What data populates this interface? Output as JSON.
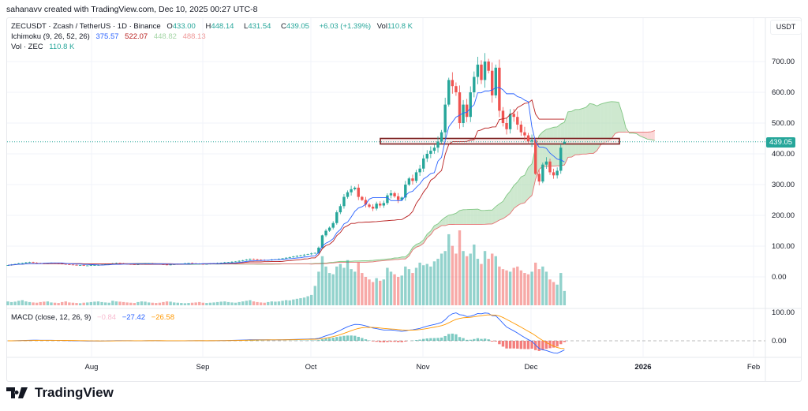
{
  "credit": "sahanavv created with TradingView.com, Dec 10, 2025 00:27 UTC-8",
  "symbol": {
    "title": "ZECUSDT · Zcash / TetherUS · 1D · Binance",
    "o_label": "O",
    "o": "433.00",
    "h_label": "H",
    "h": "448.14",
    "l_label": "L",
    "l": "431.54",
    "c_label": "C",
    "c": "439.05",
    "change": "+6.03 (+1.39%)",
    "vol_label": "Vol",
    "vol": "110.8 K"
  },
  "ichimoku": {
    "label": "Ichimoku (9, 26, 52, 26)",
    "conversion": "375.57",
    "base": "522.07",
    "span_a": "448.82",
    "span_b": "488.13"
  },
  "volume": {
    "label": "Vol · ZEC",
    "value": "110.8 K"
  },
  "macd": {
    "label": "MACD (close, 12, 26, 9)",
    "hist": "−0.84",
    "macd": "−27.42",
    "signal": "−26.58"
  },
  "axis": {
    "currency": "USDT",
    "price_ticks": [
      "700.00",
      "600.00",
      "500.00",
      "400.00",
      "300.00",
      "200.00",
      "100.00",
      "0.00"
    ],
    "macd_ticks": [
      "100.00",
      "0.00"
    ],
    "last_price": "439.05",
    "time_ticks": [
      "Aug",
      "Sep",
      "Oct",
      "Nov",
      "Dec",
      "2026",
      "Feb"
    ]
  },
  "logo": "TradingView",
  "colors": {
    "up": "#26a69a",
    "down": "#ef5350",
    "tenkan": "#2962ff",
    "kijun": "#b71c1c",
    "cloud_up": "#a5d6a7",
    "cloud_down": "#f7b7b7",
    "macd": "#2962ff",
    "signal": "#ff9800",
    "highlight_box": "#7b1f1f"
  },
  "chart_data": {
    "type": "candlestick",
    "start_date": "2025-07-08",
    "interval": "1D",
    "ylim": [
      0,
      760
    ],
    "highlight_zone": [
      432,
      450
    ],
    "last_bar": {
      "open": 433.0,
      "high": 448.14,
      "low": 431.54,
      "close": 439.05
    },
    "close": [
      38,
      40,
      42,
      44,
      45,
      47,
      48,
      46,
      45,
      44,
      43,
      44,
      45,
      44,
      43,
      42,
      41,
      40,
      39,
      38,
      38,
      37,
      37,
      38,
      38,
      39,
      40,
      41,
      42,
      44,
      45,
      44,
      43,
      42,
      41,
      40,
      41,
      42,
      43,
      44,
      43,
      42,
      41,
      40,
      39,
      40,
      41,
      42,
      43,
      44,
      45,
      44,
      43,
      42,
      41,
      42,
      43,
      44,
      45,
      46,
      47,
      48,
      49,
      50,
      52,
      54,
      56,
      58,
      57,
      56,
      55,
      54,
      55,
      56,
      57,
      58,
      60,
      62,
      64,
      66,
      68,
      70,
      72,
      74,
      76,
      78,
      95,
      135,
      150,
      160,
      175,
      210,
      230,
      260,
      275,
      285,
      290,
      260,
      250,
      235,
      228,
      222,
      238,
      232,
      240,
      265,
      272,
      262,
      250,
      258,
      300,
      320,
      312,
      340,
      352,
      385,
      400,
      410,
      420,
      440,
      470,
      560,
      640,
      620,
      600,
      500,
      560,
      520,
      600,
      650,
      690,
      640,
      700,
      670,
      590,
      680,
      540,
      500,
      480,
      530,
      520,
      495,
      470,
      460,
      440,
      445,
      335,
      310,
      365,
      375,
      340,
      330,
      345,
      420,
      439.05
    ],
    "volume_k": [
      30,
      25,
      28,
      35,
      40,
      30,
      25,
      22,
      20,
      25,
      28,
      30,
      22,
      20,
      18,
      25,
      30,
      22,
      20,
      18,
      16,
      20,
      22,
      25,
      28,
      30,
      25,
      22,
      20,
      35,
      30,
      28,
      25,
      22,
      20,
      18,
      25,
      30,
      28,
      22,
      20,
      18,
      20,
      25,
      30,
      28,
      22,
      20,
      18,
      16,
      18,
      20,
      22,
      25,
      20,
      18,
      20,
      22,
      25,
      28,
      30,
      25,
      22,
      20,
      25,
      30,
      35,
      40,
      30,
      25,
      22,
      20,
      25,
      30,
      28,
      30,
      35,
      40,
      38,
      45,
      50,
      55,
      60,
      70,
      80,
      150,
      260,
      380,
      300,
      250,
      240,
      300,
      320,
      290,
      350,
      280,
      260,
      330,
      250,
      220,
      200,
      180,
      210,
      190,
      200,
      290,
      260,
      240,
      220,
      230,
      300,
      280,
      250,
      290,
      330,
      310,
      320,
      300,
      340,
      360,
      400,
      420,
      550,
      460,
      400,
      580,
      420,
      380,
      400,
      470,
      360,
      320,
      420,
      360,
      400,
      380,
      300,
      280,
      270,
      260,
      290,
      300,
      270,
      250,
      240,
      260,
      330,
      280,
      300,
      260,
      200,
      180,
      160,
      250,
      110.8
    ]
  }
}
